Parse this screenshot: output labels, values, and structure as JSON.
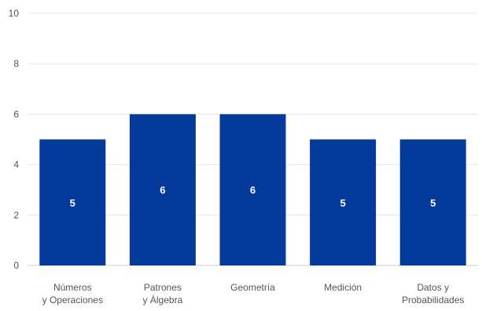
{
  "chart_data": {
    "type": "bar",
    "categories": [
      [
        "Números",
        "y Operaciones"
      ],
      [
        "Patrones",
        "y Álgebra"
      ],
      [
        "Geometría"
      ],
      [
        "Medición"
      ],
      [
        "Datos y",
        "Probabilidades"
      ]
    ],
    "values": [
      5,
      6,
      6,
      5,
      5
    ],
    "data_labels": [
      "5",
      "6",
      "6",
      "5",
      "5"
    ],
    "y_ticks": [
      "0",
      "2",
      "4",
      "6",
      "8",
      "10"
    ],
    "ylim": [
      0,
      10
    ],
    "grid": true,
    "bar_color": "#043a9c",
    "title": "",
    "xlabel": "",
    "ylabel": ""
  }
}
